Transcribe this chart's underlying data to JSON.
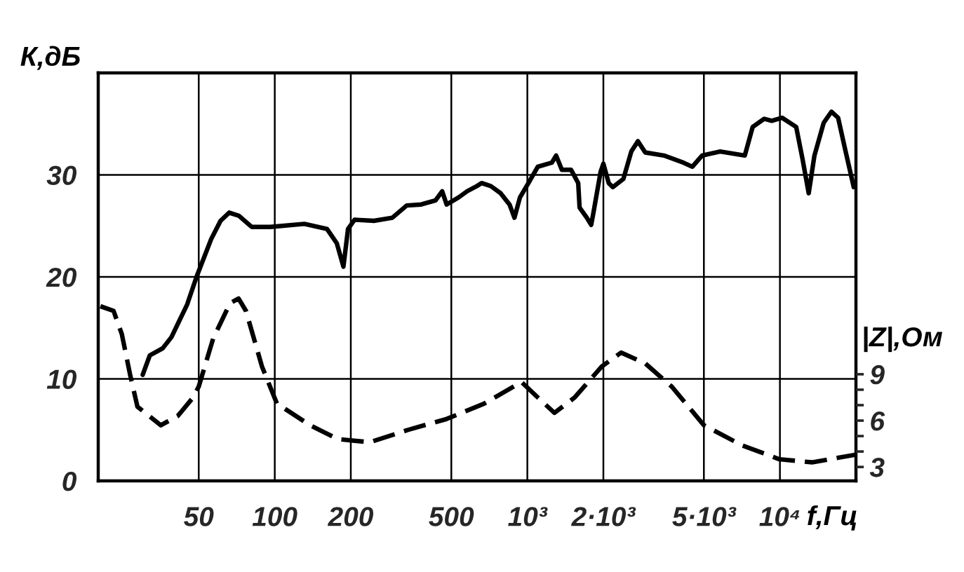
{
  "chart_data": {
    "type": "line",
    "xlabel": "f,Гц",
    "ylabel": "К,дБ",
    "y2label": "|Z|,Ом",
    "log": "x",
    "grid": true,
    "xlim": [
      20,
      20000
    ],
    "xticks": [
      50,
      100,
      200,
      500,
      {
        "value": 1000,
        "label": "10³"
      },
      {
        "value": 2000,
        "label": "2·10³"
      },
      {
        "value": 5000,
        "label": "5·10³"
      },
      {
        "value": 10000,
        "label": "10⁴"
      }
    ],
    "ylim": [
      0,
      40
    ],
    "yticks": [
      0,
      10,
      20,
      30
    ],
    "y2lim": [
      2.1,
      28.5
    ],
    "y2ticks": [
      3,
      {
        "value": 4,
        "label": null
      },
      {
        "value": 5,
        "label": null
      },
      6,
      {
        "value": 7,
        "label": null
      },
      {
        "value": 8,
        "label": null
      },
      9
    ],
    "series": [
      {
        "color": "#000000",
        "line_style": "solid",
        "x": [
          30,
          32,
          36,
          39,
          45,
          49,
          56,
          61,
          66,
          72,
          81,
          96,
          131,
          161,
          176,
          187,
          195,
          207,
          247,
          292,
          333,
          380,
          433,
          460,
          479,
          535,
          578,
          631,
          659,
          717,
          784,
          850,
          889,
          935,
          1010,
          1100,
          1250,
          1300,
          1370,
          1490,
          1590,
          1610,
          1720,
          1790,
          1830,
          1950,
          2000,
          2100,
          2180,
          2400,
          2580,
          2740,
          2930,
          3470,
          4150,
          4500,
          4920,
          5800,
          7260,
          7800,
          8670,
          9280,
          10200,
          11600,
          12300,
          13000,
          13700,
          14900,
          16000,
          17000,
          18200,
          19600
        ],
        "values": [
          10.4,
          12.3,
          13.0,
          14.1,
          17.3,
          20.0,
          23.7,
          25.5,
          26.3,
          26.0,
          24.9,
          24.9,
          25.2,
          24.7,
          23.3,
          21.0,
          24.7,
          25.6,
          25.5,
          25.8,
          27.0,
          27.1,
          27.5,
          28.4,
          27.1,
          27.8,
          28.4,
          28.9,
          29.2,
          28.9,
          28.2,
          27.1,
          25.8,
          27.8,
          29.2,
          30.8,
          31.2,
          31.9,
          30.5,
          30.5,
          29.2,
          26.8,
          25.8,
          25.1,
          26.4,
          30.3,
          31.1,
          29.2,
          28.8,
          29.6,
          32.3,
          33.3,
          32.2,
          31.9,
          31.2,
          30.8,
          31.9,
          32.3,
          31.9,
          34.7,
          35.5,
          35.3,
          35.6,
          34.7,
          31.5,
          28.2,
          31.9,
          35.1,
          36.2,
          35.6,
          32.3,
          28.8
        ]
      },
      {
        "color": "#000000",
        "line_style": "dashed",
        "axis": "y2",
        "x": [
          20.4,
          23,
          24.8,
          26.8,
          28.6,
          35.4,
          41.3,
          47.5,
          50,
          57,
          66.5,
          71.9,
          76.9,
          89,
          102,
          138,
          178,
          238,
          337,
          478,
          675,
          948,
          1100,
          1280,
          1540,
          1970,
          2350,
          2930,
          3730,
          5000,
          7080,
          9950,
          13400,
          20000
        ],
        "values": [
          13.4,
          13.1,
          11.6,
          8.9,
          6.9,
          5.7,
          6.3,
          7.5,
          8.2,
          11.3,
          13.6,
          13.9,
          13.1,
          9.5,
          7.1,
          5.7,
          4.8,
          4.6,
          5.4,
          6.1,
          7.1,
          8.5,
          7.5,
          6.5,
          7.5,
          9.5,
          10.4,
          9.7,
          8.2,
          5.7,
          4.4,
          3.5,
          3.3,
          3.8
        ]
      }
    ]
  }
}
